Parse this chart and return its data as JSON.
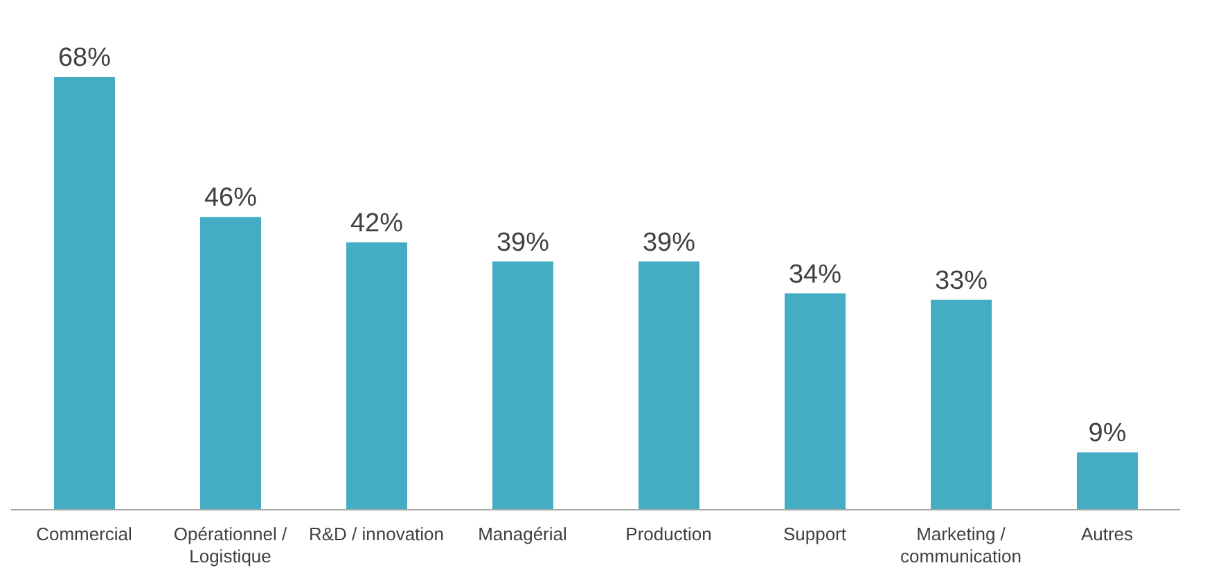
{
  "chart_data": {
    "type": "bar",
    "categories": [
      "Commercial",
      "Opérationnel / Logistique",
      "R&D / innovation",
      "Managérial",
      "Production",
      "Support",
      "Marketing / communication",
      "Autres"
    ],
    "values": [
      68,
      46,
      42,
      39,
      39,
      34,
      33,
      9
    ],
    "color": "#44adc4",
    "data_labels": true,
    "value_labels": [
      "68%",
      "46%",
      "42%",
      "39%",
      "39%",
      "34%",
      "33%",
      "9%"
    ]
  }
}
